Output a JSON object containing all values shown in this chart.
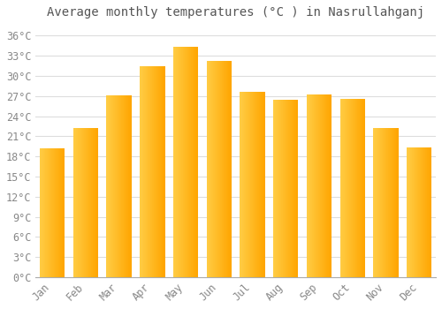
{
  "title": "Average monthly temperatures (°C ) in Nasrullahganj",
  "months": [
    "Jan",
    "Feb",
    "Mar",
    "Apr",
    "May",
    "Jun",
    "Jul",
    "Aug",
    "Sep",
    "Oct",
    "Nov",
    "Dec"
  ],
  "values": [
    19.2,
    22.2,
    27.1,
    31.4,
    34.3,
    32.2,
    27.6,
    26.4,
    27.2,
    26.6,
    22.3,
    19.4
  ],
  "bar_color_left": "#FFCC44",
  "bar_color_right": "#FFA500",
  "background_color": "#FFFFFF",
  "grid_color": "#DDDDDD",
  "ylabel_ticks": [
    0,
    3,
    6,
    9,
    12,
    15,
    18,
    21,
    24,
    27,
    30,
    33,
    36
  ],
  "ylim": [
    0,
    37.5
  ],
  "title_fontsize": 10,
  "tick_fontsize": 8.5,
  "font_family": "monospace",
  "tick_color": "#888888",
  "title_color": "#555555"
}
